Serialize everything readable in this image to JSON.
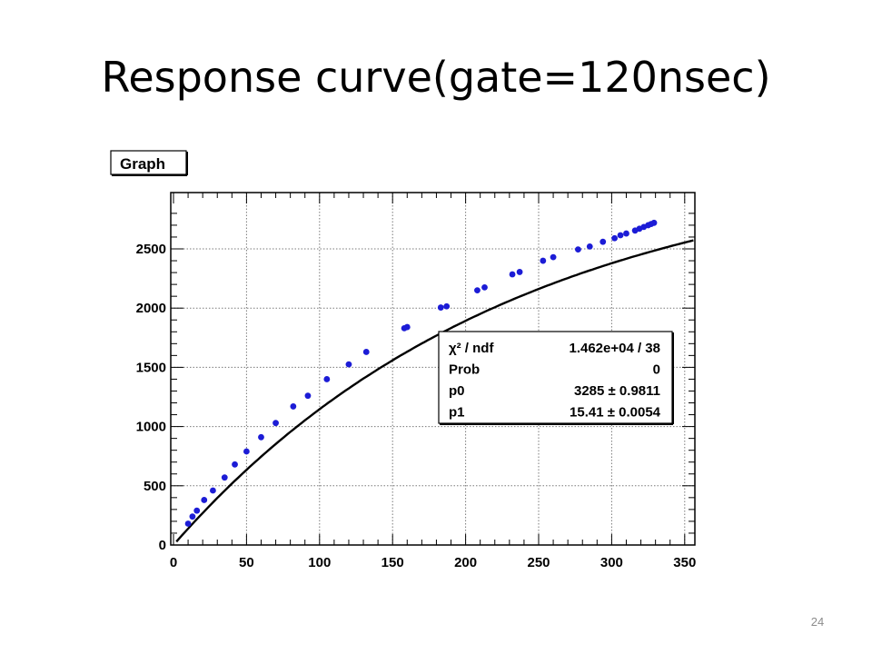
{
  "slide": {
    "title": "Response curve(gate=120nsec)",
    "page_number": "24"
  },
  "chart_data": {
    "type": "scatter",
    "title": "Graph",
    "xlabel": "",
    "ylabel": "",
    "xlim": [
      0,
      360
    ],
    "ylim": [
      0,
      2900
    ],
    "x_ticks": [
      0,
      50,
      100,
      150,
      200,
      250,
      300,
      350
    ],
    "y_ticks": [
      0,
      500,
      1000,
      1500,
      2000,
      2500
    ],
    "grid": true,
    "colors": {
      "points": "#1c1cd6",
      "fit": "#000000",
      "grid": "#7a7a7a"
    },
    "points": [
      [
        10,
        180
      ],
      [
        13,
        240
      ],
      [
        16,
        290
      ],
      [
        21,
        380
      ],
      [
        27,
        460
      ],
      [
        35,
        570
      ],
      [
        42,
        680
      ],
      [
        50,
        790
      ],
      [
        60,
        910
      ],
      [
        70,
        1030
      ],
      [
        82,
        1170
      ],
      [
        92,
        1260
      ],
      [
        105,
        1400
      ],
      [
        120,
        1525
      ],
      [
        132,
        1630
      ],
      [
        158,
        1830
      ],
      [
        160,
        1840
      ],
      [
        183,
        2005
      ],
      [
        187,
        2015
      ],
      [
        208,
        2150
      ],
      [
        213,
        2175
      ],
      [
        232,
        2285
      ],
      [
        237,
        2305
      ],
      [
        253,
        2400
      ],
      [
        260,
        2430
      ],
      [
        277,
        2495
      ],
      [
        285,
        2520
      ],
      [
        294,
        2560
      ],
      [
        302,
        2590
      ],
      [
        306,
        2615
      ],
      [
        310,
        2630
      ],
      [
        316,
        2655
      ],
      [
        319,
        2670
      ],
      [
        322,
        2685
      ],
      [
        325,
        2700
      ],
      [
        327,
        2710
      ],
      [
        329,
        2720
      ]
    ],
    "fit": {
      "function": "p0*(1-exp(-x/p1))",
      "p0": 3285,
      "p1_scale": 233
    },
    "stats_box": {
      "rows": [
        {
          "label": "χ² / ndf",
          "value": "1.462e+04 / 38"
        },
        {
          "label": "Prob",
          "value": "0"
        },
        {
          "label": "p0",
          "value": "3285 ± 0.9811"
        },
        {
          "label": "p1",
          "value": "15.41 ± 0.0054"
        }
      ]
    }
  }
}
